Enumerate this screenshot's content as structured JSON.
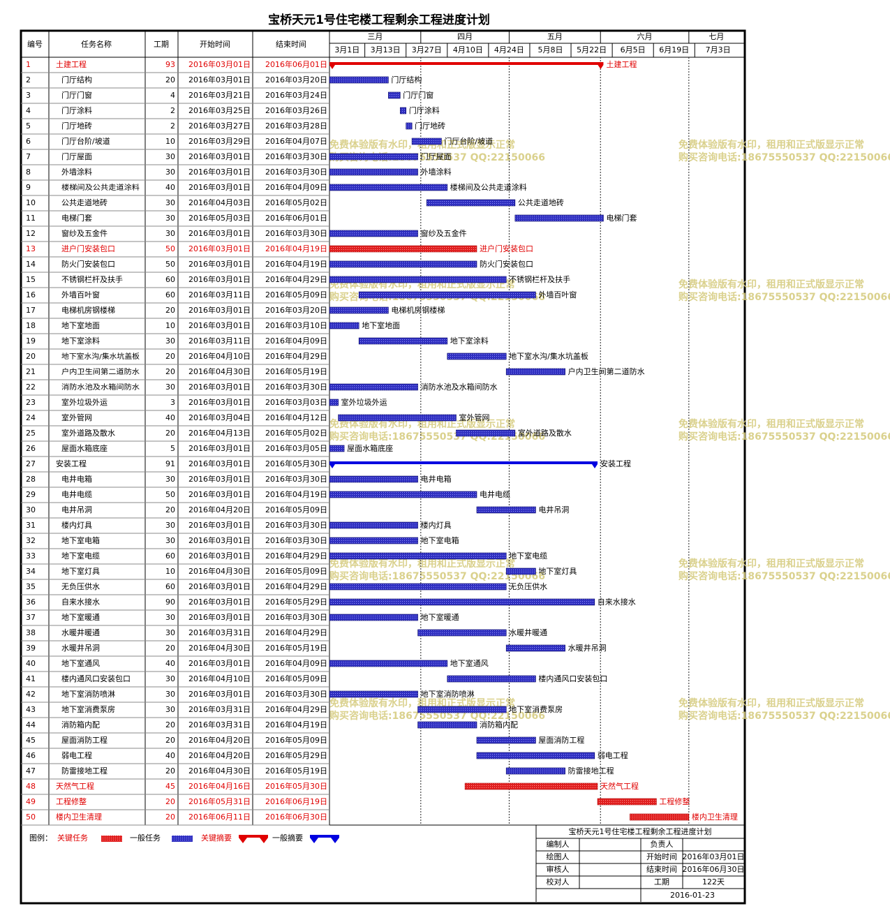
{
  "chart_data": {
    "type": "gantt",
    "title": "宝桥天元1号住宅楼工程剩余工程进度计划",
    "headers": {
      "id": "编号",
      "name": "任务名称",
      "duration": "工期",
      "start": "开始时间",
      "end": "结束时间"
    },
    "months": [
      "三月",
      "四月",
      "五月",
      "六月",
      "七月"
    ],
    "weeks": [
      "3月1日",
      "3月13日",
      "3月27日",
      "4月10日",
      "4月24日",
      "5月8日",
      "5月22日",
      "6月5日",
      "6月19日",
      "7月3日"
    ],
    "tasks": [
      {
        "id": 1,
        "name": "土建工程",
        "duration": 93,
        "start": "2016年03月01日",
        "end": "2016年06月01日",
        "critical": true,
        "summary": true
      },
      {
        "id": 2,
        "name": "门厅结构",
        "duration": 20,
        "start": "2016年03月01日",
        "end": "2016年03月20日"
      },
      {
        "id": 3,
        "name": "门厅门窗",
        "duration": 4,
        "start": "2016年03月21日",
        "end": "2016年03月24日"
      },
      {
        "id": 4,
        "name": "门厅涂料",
        "duration": 2,
        "start": "2016年03月25日",
        "end": "2016年03月26日"
      },
      {
        "id": 5,
        "name": "门厅地砖",
        "duration": 2,
        "start": "2016年03月27日",
        "end": "2016年03月28日"
      },
      {
        "id": 6,
        "name": "门厅台阶/坡道",
        "duration": 10,
        "start": "2016年03月29日",
        "end": "2016年04月07日"
      },
      {
        "id": 7,
        "name": "门厅屋面",
        "duration": 30,
        "start": "2016年03月01日",
        "end": "2016年03月30日"
      },
      {
        "id": 8,
        "name": "外墙涂料",
        "duration": 30,
        "start": "2016年03月01日",
        "end": "2016年03月30日"
      },
      {
        "id": 9,
        "name": "楼梯间及公共走道涂料",
        "duration": 40,
        "start": "2016年03月01日",
        "end": "2016年04月09日"
      },
      {
        "id": 10,
        "name": "公共走道地砖",
        "duration": 30,
        "start": "2016年04月03日",
        "end": "2016年05月02日"
      },
      {
        "id": 11,
        "name": "电梯门套",
        "duration": 30,
        "start": "2016年05月03日",
        "end": "2016年06月01日"
      },
      {
        "id": 12,
        "name": "窗纱及五金件",
        "duration": 30,
        "start": "2016年03月01日",
        "end": "2016年03月30日"
      },
      {
        "id": 13,
        "name": "进户门安装包口",
        "duration": 50,
        "start": "2016年03月01日",
        "end": "2016年04月19日",
        "critical": true
      },
      {
        "id": 14,
        "name": "防火门安装包口",
        "duration": 50,
        "start": "2016年03月01日",
        "end": "2016年04月19日"
      },
      {
        "id": 15,
        "name": "不锈钢栏杆及扶手",
        "duration": 60,
        "start": "2016年03月01日",
        "end": "2016年04月29日"
      },
      {
        "id": 16,
        "name": "外墙百叶窗",
        "duration": 60,
        "start": "2016年03月11日",
        "end": "2016年05月09日"
      },
      {
        "id": 17,
        "name": "电梯机房钢楼梯",
        "duration": 20,
        "start": "2016年03月01日",
        "end": "2016年03月20日"
      },
      {
        "id": 18,
        "name": "地下室地面",
        "duration": 10,
        "start": "2016年03月01日",
        "end": "2016年03月10日"
      },
      {
        "id": 19,
        "name": "地下室涂料",
        "duration": 30,
        "start": "2016年03月11日",
        "end": "2016年04月09日"
      },
      {
        "id": 20,
        "name": "地下室水沟/集水坑盖板",
        "duration": 20,
        "start": "2016年04月10日",
        "end": "2016年04月29日"
      },
      {
        "id": 21,
        "name": "户内卫生间第二道防水",
        "duration": 20,
        "start": "2016年04月30日",
        "end": "2016年05月19日"
      },
      {
        "id": 22,
        "name": "消防水池及水箱间防水",
        "duration": 30,
        "start": "2016年03月01日",
        "end": "2016年03月30日"
      },
      {
        "id": 23,
        "name": "室外垃圾外运",
        "duration": 3,
        "start": "2016年03月01日",
        "end": "2016年03月03日"
      },
      {
        "id": 24,
        "name": "室外管网",
        "duration": 40,
        "start": "2016年03月04日",
        "end": "2016年04月12日"
      },
      {
        "id": 25,
        "name": "室外道路及散水",
        "duration": 20,
        "start": "2016年04月13日",
        "end": "2016年05月02日"
      },
      {
        "id": 26,
        "name": "屋面水箱底座",
        "duration": 5,
        "start": "2016年03月01日",
        "end": "2016年03月05日"
      },
      {
        "id": 27,
        "name": "安装工程",
        "duration": 91,
        "start": "2016年03月01日",
        "end": "2016年05月30日",
        "summary": true
      },
      {
        "id": 28,
        "name": "电井电箱",
        "duration": 30,
        "start": "2016年03月01日",
        "end": "2016年03月30日"
      },
      {
        "id": 29,
        "name": "电井电缆",
        "duration": 50,
        "start": "2016年03月01日",
        "end": "2016年04月19日"
      },
      {
        "id": 30,
        "name": "电井吊洞",
        "duration": 20,
        "start": "2016年04月20日",
        "end": "2016年05月09日"
      },
      {
        "id": 31,
        "name": "楼内灯具",
        "duration": 30,
        "start": "2016年03月01日",
        "end": "2016年03月30日"
      },
      {
        "id": 32,
        "name": "地下室电箱",
        "duration": 30,
        "start": "2016年03月01日",
        "end": "2016年03月30日"
      },
      {
        "id": 33,
        "name": "地下室电缆",
        "duration": 60,
        "start": "2016年03月01日",
        "end": "2016年04月29日"
      },
      {
        "id": 34,
        "name": "地下室灯具",
        "duration": 10,
        "start": "2016年04月30日",
        "end": "2016年05月09日"
      },
      {
        "id": 35,
        "name": "无负压供水",
        "duration": 60,
        "start": "2016年03月01日",
        "end": "2016年04月29日"
      },
      {
        "id": 36,
        "name": "自来水接水",
        "duration": 90,
        "start": "2016年03月01日",
        "end": "2016年05月29日"
      },
      {
        "id": 37,
        "name": "地下室暖通",
        "duration": 30,
        "start": "2016年03月01日",
        "end": "2016年03月30日"
      },
      {
        "id": 38,
        "name": "水暖井暖通",
        "duration": 30,
        "start": "2016年03月31日",
        "end": "2016年04月29日"
      },
      {
        "id": 39,
        "name": "水暖井吊洞",
        "duration": 20,
        "start": "2016年04月30日",
        "end": "2016年05月19日"
      },
      {
        "id": 40,
        "name": "地下室通风",
        "duration": 40,
        "start": "2016年03月01日",
        "end": "2016年04月09日"
      },
      {
        "id": 41,
        "name": "楼内通风口安装包口",
        "duration": 30,
        "start": "2016年04月10日",
        "end": "2016年05月09日"
      },
      {
        "id": 42,
        "name": "地下室消防喷淋",
        "duration": 30,
        "start": "2016年03月01日",
        "end": "2016年03月30日"
      },
      {
        "id": 43,
        "name": "地下室消费泵房",
        "duration": 30,
        "start": "2016年03月31日",
        "end": "2016年04月29日"
      },
      {
        "id": 44,
        "name": "消防箱内配",
        "duration": 20,
        "start": "2016年03月31日",
        "end": "2016年04月19日"
      },
      {
        "id": 45,
        "name": "屋面消防工程",
        "duration": 20,
        "start": "2016年04月20日",
        "end": "2016年05月09日"
      },
      {
        "id": 46,
        "name": "弱电工程",
        "duration": 40,
        "start": "2016年04月20日",
        "end": "2016年05月29日"
      },
      {
        "id": 47,
        "name": "防雷接地工程",
        "duration": 20,
        "start": "2016年04月30日",
        "end": "2016年05月19日"
      },
      {
        "id": 48,
        "name": "天然气工程",
        "duration": 45,
        "start": "2016年04月16日",
        "end": "2016年05月30日",
        "critical": true
      },
      {
        "id": 49,
        "name": "工程修整",
        "duration": 20,
        "start": "2016年05月31日",
        "end": "2016年06月19日",
        "critical": true
      },
      {
        "id": 50,
        "name": "楼内卫生清理",
        "duration": 20,
        "start": "2016年06月11日",
        "end": "2016年06月30日",
        "critical": true
      }
    ],
    "legend": {
      "title": "图例：",
      "critical_task": "关键任务",
      "normal_task": "一般任务",
      "critical_summary": "关键摘要",
      "normal_summary": "一般摘要"
    },
    "footer": {
      "title": "宝桥天元1号住宅楼工程剩余工程进度计划",
      "compiler": "编制人",
      "owner": "负责人",
      "drawer": "绘图人",
      "start_label": "开始时间",
      "start": "2016年03月01日",
      "reviewer": "审核人",
      "end_label": "结束时间",
      "end": "2016年06月30日",
      "checker": "校对人",
      "duration_label": "工期",
      "duration": "122天",
      "date": "2016-01-23"
    },
    "watermark": [
      "免费体验版有水印，租用和正式版显示正常",
      "购买咨询电话:18675550537 QQ:22150066"
    ]
  }
}
